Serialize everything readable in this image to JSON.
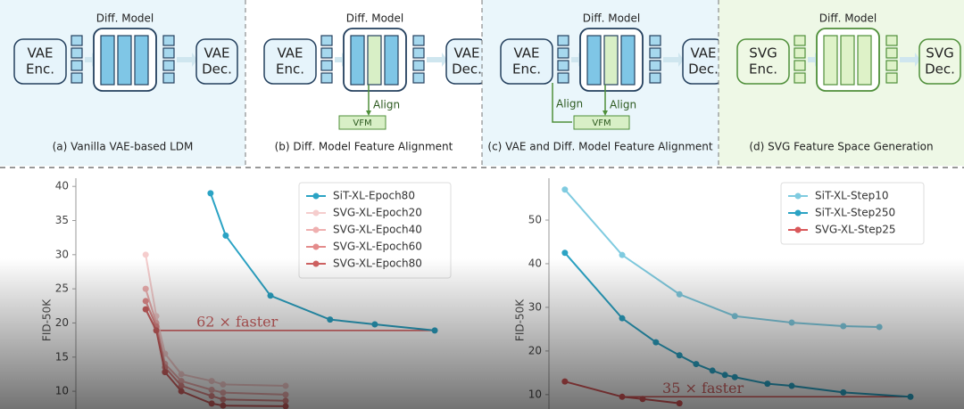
{
  "diagram": {
    "panels": [
      {
        "title": "Diff. Model",
        "encoder": [
          "VAE",
          "Enc."
        ],
        "decoder": [
          "VAE",
          "Dec."
        ],
        "caption": "(a) Vanilla VAE-based LDM"
      },
      {
        "title": "Diff. Model",
        "encoder": [
          "VAE",
          "Enc."
        ],
        "decoder": [
          "VAE",
          "Dec."
        ],
        "caption": "(b) Diff. Model Feature Alignment",
        "align": [
          "Align"
        ],
        "vfm": "VFM"
      },
      {
        "title": "Diff. Model",
        "encoder": [
          "VAE",
          "Enc."
        ],
        "decoder": [
          "VAE",
          "Dec."
        ],
        "caption": "(c) VAE and Diff. Model Feature Alignment",
        "align": [
          "Align",
          "Align"
        ],
        "vfm": "VFM"
      },
      {
        "title": "Diff. Model",
        "encoder": [
          "SVG",
          "Enc."
        ],
        "decoder": [
          "SVG",
          "Dec."
        ],
        "caption": "(d) SVG Feature Space Generation"
      }
    ]
  },
  "chart_data": [
    {
      "type": "line",
      "ylabel": "FID-50K",
      "xlim": [
        0,
        100
      ],
      "ylim": [
        7.4,
        41.2
      ],
      "yticks": [
        10,
        15,
        20,
        25,
        30,
        35,
        40
      ],
      "legend": "upper right",
      "series": [
        {
          "name": "SiT-XL-Epoch80",
          "color": "#2ba3c4",
          "x": [
            35.5,
            39.5,
            51.3,
            67,
            78.8,
            94.6
          ],
          "values": [
            39,
            32.8,
            24,
            20.5,
            19.8,
            18.9
          ]
        },
        {
          "name": "SVG-XL-Epoch20",
          "color": "#f5cdcd",
          "x": [
            18.4,
            21.2,
            23.5,
            27.8,
            35.8,
            38.8,
            55.3
          ],
          "values": [
            30,
            21,
            15.5,
            12.5,
            11.5,
            11,
            10.8
          ]
        },
        {
          "name": "SVG-XL-Epoch40",
          "color": "#efb0b0",
          "x": [
            18.4,
            21.2,
            23.5,
            27.8,
            35.8,
            38.8,
            55.3
          ],
          "values": [
            25,
            20,
            14,
            11.5,
            10.2,
            9.8,
            9.5
          ]
        },
        {
          "name": "SVG-XL-Epoch60",
          "color": "#e48c8c",
          "x": [
            18.4,
            21.2,
            23.5,
            27.8,
            35.8,
            38.8,
            55.3
          ],
          "values": [
            23.2,
            19.5,
            13.5,
            10.8,
            9.3,
            8.8,
            8.6
          ]
        },
        {
          "name": "SVG-XL-Epoch80",
          "color": "#d06262",
          "x": [
            18.4,
            21.2,
            23.5,
            27.8,
            35.8,
            38.8,
            55.3
          ],
          "values": [
            22,
            18.9,
            12.8,
            10,
            8.2,
            7.9,
            7.8
          ]
        }
      ],
      "annotation": {
        "text": "62 × faster",
        "y": 18.9,
        "x": [
          21.2,
          94.6
        ]
      }
    },
    {
      "type": "line",
      "ylabel": "FID-50K",
      "xlim": [
        0,
        100
      ],
      "ylim": [
        6.7,
        59.6
      ],
      "yticks": [
        10,
        20,
        30,
        40,
        50
      ],
      "legend": "upper right",
      "series": [
        {
          "name": "SiT-XL-Step10",
          "color": "#7fcbe0",
          "x": [
            4.2,
            19.3,
            34.4,
            49,
            64,
            77.6,
            87.1
          ],
          "values": [
            57,
            42,
            33,
            28,
            26.5,
            25.7,
            25.5
          ]
        },
        {
          "name": "SiT-XL-Step250",
          "color": "#2ba3c4",
          "x": [
            4.2,
            19.3,
            28.2,
            34.4,
            38.8,
            43.1,
            46.4,
            49,
            57.6,
            64,
            77.6,
            95.3
          ],
          "values": [
            42.5,
            27.5,
            22,
            19,
            17,
            15.5,
            14.5,
            14,
            12.5,
            12,
            10.5,
            9.5
          ]
        },
        {
          "name": "SVG-XL-Step25",
          "color": "#d9585a",
          "x": [
            4.2,
            19.3,
            24.7,
            34.4
          ],
          "values": [
            13,
            9.5,
            9,
            8
          ]
        }
      ],
      "annotation": {
        "text": "35 × faster",
        "y": 9.5,
        "x": [
          19.3,
          95.3
        ]
      }
    }
  ]
}
